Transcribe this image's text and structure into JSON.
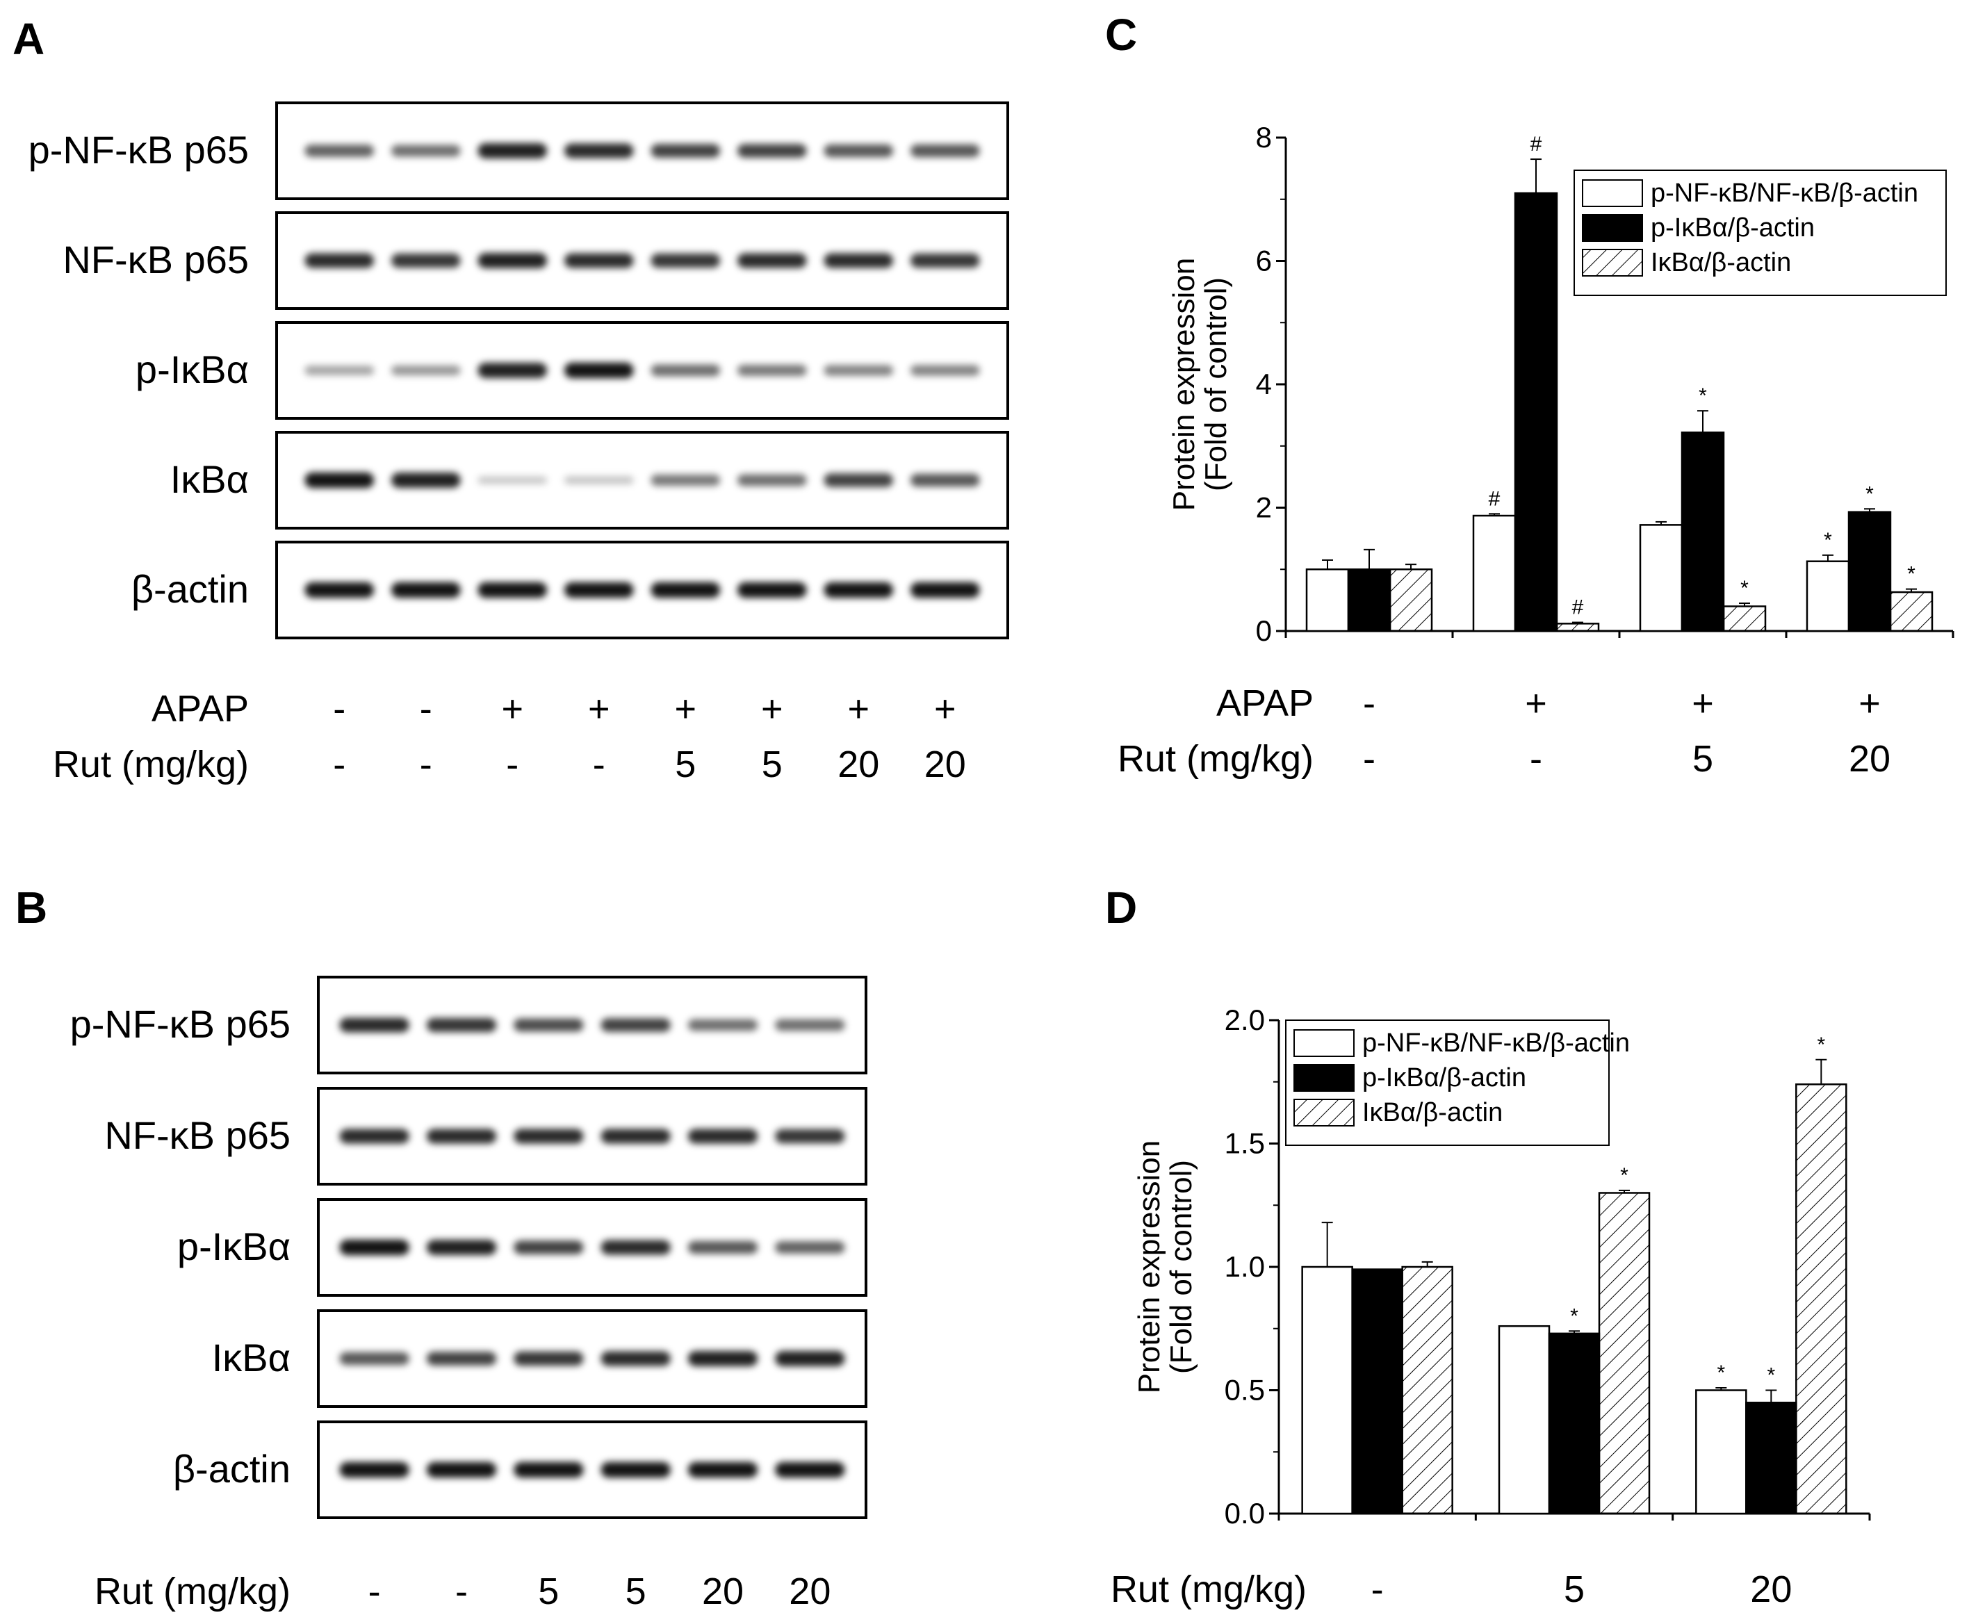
{
  "panels": {
    "A": {
      "letter": "A",
      "proteins": [
        "p-NF-κB p65",
        "NF-κB p65",
        "p-IκBα",
        "IκBα",
        "β-actin"
      ],
      "apap_label": "APAP",
      "apap": [
        "-",
        "-",
        "+",
        "+",
        "+",
        "+",
        "+",
        "+"
      ],
      "rut_label": "Rut (mg/kg)",
      "rut": [
        "-",
        "-",
        "-",
        "-",
        "5",
        "5",
        "20",
        "20"
      ],
      "intensities": [
        [
          0.55,
          0.5,
          0.85,
          0.8,
          0.7,
          0.7,
          0.6,
          0.6
        ],
        [
          0.8,
          0.75,
          0.85,
          0.8,
          0.75,
          0.8,
          0.8,
          0.75
        ],
        [
          0.25,
          0.3,
          0.85,
          0.9,
          0.5,
          0.45,
          0.4,
          0.4
        ],
        [
          0.9,
          0.85,
          0.08,
          0.1,
          0.45,
          0.5,
          0.7,
          0.6
        ],
        [
          0.9,
          0.9,
          0.9,
          0.9,
          0.9,
          0.9,
          0.9,
          0.9
        ]
      ]
    },
    "B": {
      "letter": "B",
      "proteins": [
        "p-NF-κB p65",
        "NF-κB p65",
        "p-IκBα",
        "IκBα",
        "β-actin"
      ],
      "rut_label": "Rut (mg/kg)",
      "rut": [
        "-",
        "-",
        "5",
        "5",
        "20",
        "20"
      ],
      "intensities": [
        [
          0.8,
          0.75,
          0.65,
          0.7,
          0.5,
          0.5
        ],
        [
          0.8,
          0.8,
          0.8,
          0.8,
          0.8,
          0.75
        ],
        [
          0.9,
          0.85,
          0.7,
          0.8,
          0.6,
          0.55
        ],
        [
          0.6,
          0.7,
          0.75,
          0.8,
          0.85,
          0.85
        ],
        [
          0.9,
          0.9,
          0.9,
          0.9,
          0.9,
          0.9
        ]
      ]
    },
    "C": {
      "letter": "C",
      "treat_rows": [
        {
          "label": "APAP",
          "values": [
            "-",
            "+",
            "+",
            "+"
          ]
        },
        {
          "label": "Rut (mg/kg)",
          "values": [
            "-",
            "-",
            "5",
            "20"
          ]
        }
      ]
    },
    "D": {
      "letter": "D",
      "treat_rows": [
        {
          "label": "Rut (mg/kg)",
          "values": [
            "-",
            "5",
            "20"
          ]
        }
      ]
    }
  },
  "chart_data": [
    {
      "panel": "C",
      "type": "bar",
      "ylabel": [
        "Protein expression",
        "(Fold of control)"
      ],
      "ylim": [
        0,
        8
      ],
      "yticks": [
        0,
        2,
        4,
        6,
        8
      ],
      "ytick_labels": [
        "0",
        "2",
        "4",
        "6",
        "8"
      ],
      "legend_position": "top-right",
      "series": [
        {
          "name": "p-NF-κB/NF-κB/β-actin",
          "fill": "white",
          "values": [
            1.0,
            1.87,
            1.72,
            1.13
          ],
          "errors": [
            0.15,
            0.03,
            0.05,
            0.1
          ],
          "marks": [
            "",
            "#",
            "",
            "*"
          ]
        },
        {
          "name": "p-IκBα/β-actin",
          "fill": "black",
          "values": [
            1.0,
            7.1,
            3.22,
            1.93
          ],
          "errors": [
            0.32,
            0.55,
            0.35,
            0.05
          ],
          "marks": [
            "",
            "#",
            "*",
            "*"
          ]
        },
        {
          "name": "IκBα/β-actin",
          "fill": "hatch",
          "values": [
            1.0,
            0.12,
            0.4,
            0.63
          ],
          "errors": [
            0.08,
            0.02,
            0.05,
            0.05
          ],
          "marks": [
            "",
            "#",
            "*",
            "*"
          ]
        }
      ]
    },
    {
      "panel": "D",
      "type": "bar",
      "ylabel": [
        "Protein expression",
        "(Fold of control)"
      ],
      "ylim": [
        0,
        2.0
      ],
      "yticks": [
        0,
        0.5,
        1.0,
        1.5,
        2.0
      ],
      "ytick_labels": [
        "0.0",
        "0.5",
        "1.0",
        "1.5",
        "2.0"
      ],
      "legend_position": "top-left",
      "series": [
        {
          "name": "p-NF-κB/NF-κB/β-actin",
          "fill": "white",
          "values": [
            1.0,
            0.76,
            0.5
          ],
          "errors": [
            0.18,
            0.0,
            0.01
          ],
          "marks": [
            "",
            "",
            "*"
          ]
        },
        {
          "name": "p-IκBα/β-actin",
          "fill": "black",
          "values": [
            0.99,
            0.73,
            0.45
          ],
          "errors": [
            0.0,
            0.01,
            0.05
          ],
          "marks": [
            "",
            "*",
            "*"
          ]
        },
        {
          "name": "IκBα/β-actin",
          "fill": "hatch",
          "values": [
            1.0,
            1.3,
            1.74
          ],
          "errors": [
            0.02,
            0.01,
            0.1
          ],
          "marks": [
            "",
            "*",
            "*"
          ]
        }
      ]
    }
  ]
}
